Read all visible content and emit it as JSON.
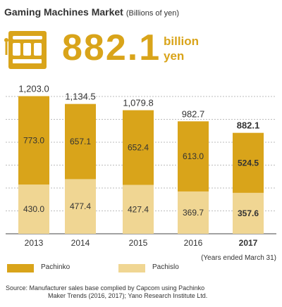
{
  "header": {
    "title": "Gaming Machines Market",
    "unit": "(Billions of yen)"
  },
  "highlight": {
    "value": "882.1",
    "unit_line1": "billion",
    "unit_line2": "yen",
    "icon": "slot-machine-icon"
  },
  "colors": {
    "pachinko": "#d9a41a",
    "pachislo": "#f0d693",
    "accent": "#d9a41a",
    "text": "#333333"
  },
  "chart_data": {
    "type": "bar",
    "stacked": true,
    "categories": [
      "2013",
      "2014",
      "2015",
      "2016",
      "2017"
    ],
    "series": [
      {
        "name": "Pachinko",
        "values": [
          773.0,
          657.1,
          652.4,
          613.0,
          524.5
        ]
      },
      {
        "name": "Pachislo",
        "values": [
          430.0,
          477.4,
          427.4,
          369.7,
          357.6
        ]
      }
    ],
    "value_labels": {
      "Pachinko": [
        "773.0",
        "657.1",
        "652.4",
        "613.0",
        "524.5"
      ],
      "Pachislo": [
        "430.0",
        "477.4",
        "427.4",
        "369.7",
        "357.6"
      ]
    },
    "totals": [
      "1,203.0",
      "1,134.5",
      "1,079.8",
      "982.7",
      "882.1"
    ],
    "highlighted_category": "2017",
    "ylim": [
      0,
      1300
    ],
    "grid": "horizontal dashed",
    "legend": "bottom-left",
    "note": "(Years ended March 31)"
  },
  "source": {
    "line1": "Source: Manufacturer sales base complied by Capcom using Pachinko",
    "line2": "Maker Trends (2016, 2017); Yano Research Institute Ltd."
  }
}
